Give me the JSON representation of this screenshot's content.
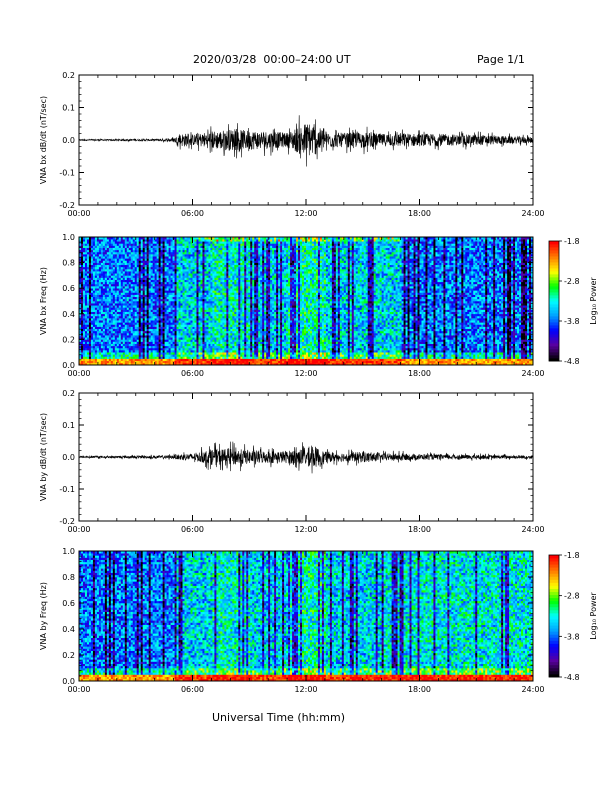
{
  "header": {
    "title": "2020/03/28  00:00–24:00 UT",
    "page": "Page 1/1"
  },
  "x_axis_title": "Universal Time (hh:mm)",
  "chart_data": [
    {
      "type": "line",
      "ylabel": "VNA bx dB/dt (nT/sec)",
      "xlim": [
        "00:00",
        "24:00"
      ],
      "ylim": [
        -0.2,
        0.2
      ],
      "x_ticks": [
        "00:00",
        "06:00",
        "12:00",
        "18:00",
        "24:00"
      ],
      "y_ticks": [
        "-0.2",
        "-0.1",
        "0.0",
        "0.1",
        "0.2"
      ],
      "envelope": {
        "hours": [
          0,
          1,
          2,
          3,
          4,
          5,
          5.5,
          6,
          7,
          8,
          9,
          10,
          11,
          11.5,
          12,
          12.5,
          13,
          14,
          15,
          16,
          17,
          18,
          19,
          20,
          21,
          22,
          23,
          24
        ],
        "amplitude": [
          0.004,
          0.004,
          0.004,
          0.005,
          0.006,
          0.01,
          0.04,
          0.03,
          0.05,
          0.06,
          0.055,
          0.05,
          0.04,
          0.07,
          0.1,
          0.085,
          0.045,
          0.04,
          0.045,
          0.035,
          0.04,
          0.035,
          0.035,
          0.03,
          0.03,
          0.025,
          0.02,
          0.018
        ]
      },
      "color": "#000000"
    },
    {
      "type": "heatmap",
      "ylabel": "VNA bx Freq (Hz)",
      "colorbar_label": "Log₁₀ Power",
      "colorbar_ticks": [
        "-1.8",
        "-2.8",
        "-3.8",
        "-4.8"
      ],
      "zlim": [
        -4.8,
        -1.8
      ],
      "xlim": [
        "00:00",
        "24:00"
      ],
      "ylim": [
        0.0,
        1.0
      ],
      "x_ticks": [
        "00:00",
        "06:00",
        "12:00",
        "18:00",
        "24:00"
      ],
      "y_ticks": [
        "0.0",
        "0.2",
        "0.4",
        "0.6",
        "0.8",
        "1.0"
      ],
      "colormap": [
        "#000000",
        "#5a00a0",
        "#0000ff",
        "#00a0ff",
        "#00ffff",
        "#00ff00",
        "#ffff00",
        "#ff8000",
        "#ff0000"
      ]
    },
    {
      "type": "line",
      "ylabel": "VNA by dB/dt (nT/sec)",
      "xlim": [
        "00:00",
        "24:00"
      ],
      "ylim": [
        -0.2,
        0.2
      ],
      "x_ticks": [
        "00:00",
        "06:00",
        "12:00",
        "18:00",
        "24:00"
      ],
      "y_ticks": [
        "-0.2",
        "-0.1",
        "0.0",
        "0.1",
        "0.2"
      ],
      "envelope": {
        "hours": [
          0,
          1,
          2,
          3,
          4,
          5,
          5.5,
          6,
          7,
          8,
          9,
          10,
          11,
          11.5,
          12,
          12.5,
          13,
          14,
          15,
          16,
          17,
          18,
          19,
          20,
          21,
          22,
          23,
          24
        ],
        "amplitude": [
          0.005,
          0.006,
          0.006,
          0.007,
          0.008,
          0.01,
          0.02,
          0.02,
          0.045,
          0.05,
          0.04,
          0.035,
          0.035,
          0.045,
          0.05,
          0.06,
          0.03,
          0.025,
          0.03,
          0.02,
          0.02,
          0.015,
          0.015,
          0.012,
          0.012,
          0.01,
          0.01,
          0.01
        ]
      },
      "color": "#000000"
    },
    {
      "type": "heatmap",
      "ylabel": "VNA by Freq (Hz)",
      "colorbar_label": "Log₁₀ Power",
      "colorbar_ticks": [
        "-1.8",
        "-2.8",
        "-3.8",
        "-4.8"
      ],
      "zlim": [
        -4.8,
        -1.8
      ],
      "xlim": [
        "00:00",
        "24:00"
      ],
      "ylim": [
        0.0,
        1.0
      ],
      "x_ticks": [
        "00:00",
        "06:00",
        "12:00",
        "18:00",
        "24:00"
      ],
      "y_ticks": [
        "0.0",
        "0.2",
        "0.4",
        "0.6",
        "0.8",
        "1.0"
      ],
      "colormap": [
        "#000000",
        "#5a00a0",
        "#0000ff",
        "#00a0ff",
        "#00ffff",
        "#00ff00",
        "#ffff00",
        "#ff8000",
        "#ff0000"
      ]
    }
  ]
}
